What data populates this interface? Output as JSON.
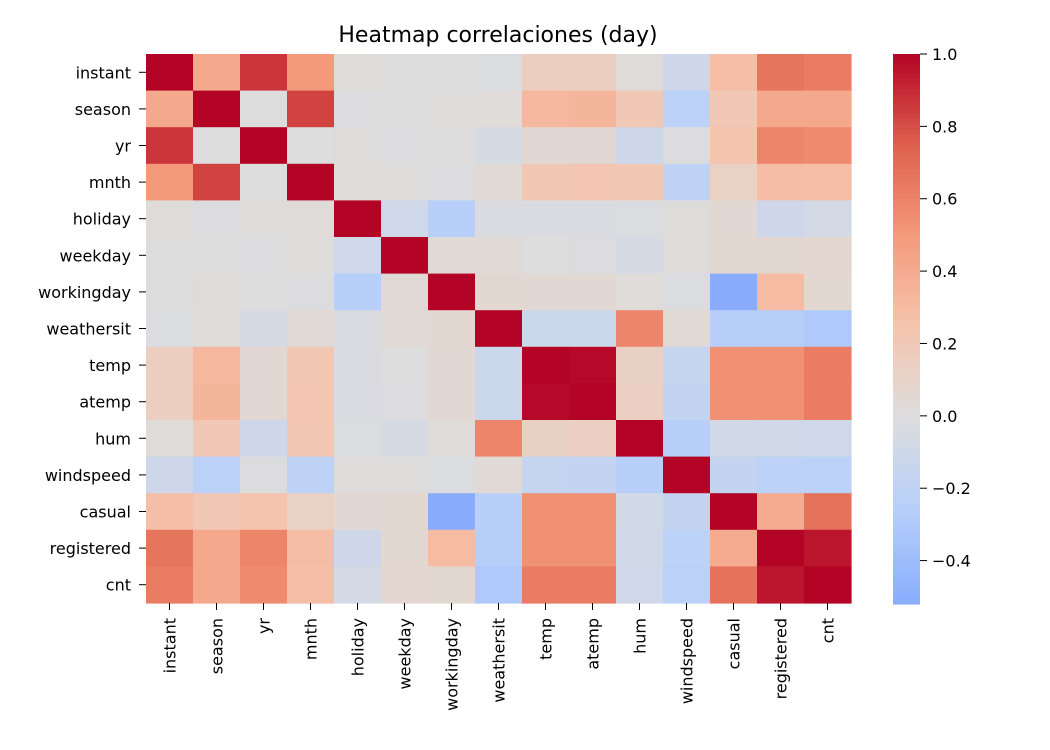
{
  "chart_data": {
    "type": "heatmap",
    "title": "Heatmap correlaciones (day)",
    "xlabel": "",
    "ylabel": "",
    "labels": [
      "instant",
      "season",
      "yr",
      "mnth",
      "holiday",
      "weekday",
      "workingday",
      "weathersit",
      "temp",
      "atemp",
      "hum",
      "windspeed",
      "casual",
      "registered",
      "cnt"
    ],
    "matrix": [
      [
        1.0,
        0.41,
        0.87,
        0.5,
        0.02,
        0.0,
        0.0,
        -0.02,
        0.15,
        0.15,
        0.02,
        -0.11,
        0.28,
        0.66,
        0.63
      ],
      [
        0.41,
        1.0,
        0.0,
        0.83,
        -0.01,
        0.0,
        0.01,
        0.02,
        0.33,
        0.34,
        0.21,
        -0.23,
        0.21,
        0.41,
        0.41
      ],
      [
        0.87,
        0.0,
        1.0,
        -0.0,
        0.01,
        -0.01,
        -0.0,
        -0.05,
        0.05,
        0.05,
        -0.11,
        -0.01,
        0.25,
        0.59,
        0.57
      ],
      [
        0.5,
        0.83,
        -0.0,
        1.0,
        0.02,
        0.01,
        -0.01,
        0.04,
        0.22,
        0.23,
        0.22,
        -0.21,
        0.12,
        0.29,
        0.28
      ],
      [
        0.02,
        -0.01,
        0.01,
        0.02,
        1.0,
        -0.1,
        -0.25,
        -0.03,
        -0.03,
        -0.03,
        -0.02,
        0.01,
        0.05,
        -0.11,
        -0.07
      ],
      [
        0.0,
        0.0,
        -0.01,
        0.01,
        -0.1,
        1.0,
        0.04,
        0.03,
        -0.0,
        -0.01,
        -0.05,
        0.01,
        0.06,
        0.06,
        0.07
      ],
      [
        0.0,
        0.01,
        -0.0,
        -0.01,
        -0.25,
        0.04,
        1.0,
        0.06,
        0.05,
        0.05,
        0.02,
        -0.02,
        -0.52,
        0.3,
        0.06
      ],
      [
        -0.02,
        0.02,
        -0.05,
        0.04,
        -0.03,
        0.03,
        0.06,
        1.0,
        -0.12,
        -0.12,
        0.59,
        0.04,
        -0.25,
        -0.26,
        -0.3
      ],
      [
        0.15,
        0.33,
        0.05,
        0.22,
        -0.03,
        -0.0,
        0.05,
        -0.12,
        1.0,
        0.99,
        0.13,
        -0.16,
        0.54,
        0.54,
        0.63
      ],
      [
        0.15,
        0.34,
        0.05,
        0.23,
        -0.03,
        -0.01,
        0.05,
        -0.12,
        0.99,
        1.0,
        0.14,
        -0.18,
        0.54,
        0.54,
        0.63
      ],
      [
        0.02,
        0.21,
        -0.11,
        0.22,
        -0.02,
        -0.05,
        0.02,
        0.59,
        0.13,
        0.14,
        1.0,
        -0.25,
        -0.08,
        -0.09,
        -0.1
      ],
      [
        -0.11,
        -0.23,
        -0.01,
        -0.21,
        0.01,
        0.01,
        -0.02,
        0.04,
        -0.16,
        -0.18,
        -0.25,
        1.0,
        -0.17,
        -0.22,
        -0.23
      ],
      [
        0.28,
        0.21,
        0.25,
        0.12,
        0.05,
        0.06,
        -0.52,
        -0.25,
        0.54,
        0.54,
        -0.08,
        -0.17,
        1.0,
        0.4,
        0.67
      ],
      [
        0.66,
        0.41,
        0.59,
        0.29,
        -0.11,
        0.06,
        0.3,
        -0.26,
        0.54,
        0.54,
        -0.09,
        -0.22,
        0.4,
        1.0,
        0.95
      ],
      [
        0.63,
        0.41,
        0.57,
        0.28,
        -0.07,
        0.07,
        0.06,
        -0.3,
        0.63,
        0.63,
        -0.1,
        -0.23,
        0.67,
        0.95,
        1.0
      ]
    ],
    "colormap": "coolwarm",
    "vmin": -0.52,
    "vmax": 1.0,
    "colorbar_ticks": [
      1.0,
      0.8,
      0.6,
      0.4,
      0.2,
      0.0,
      -0.2,
      -0.4
    ],
    "colorbar_tick_labels": [
      "1.0",
      "0.8",
      "0.6",
      "0.4",
      "0.2",
      "0.0",
      "−0.2",
      "−0.4"
    ],
    "grid": false,
    "legend": "colorbar-right"
  }
}
